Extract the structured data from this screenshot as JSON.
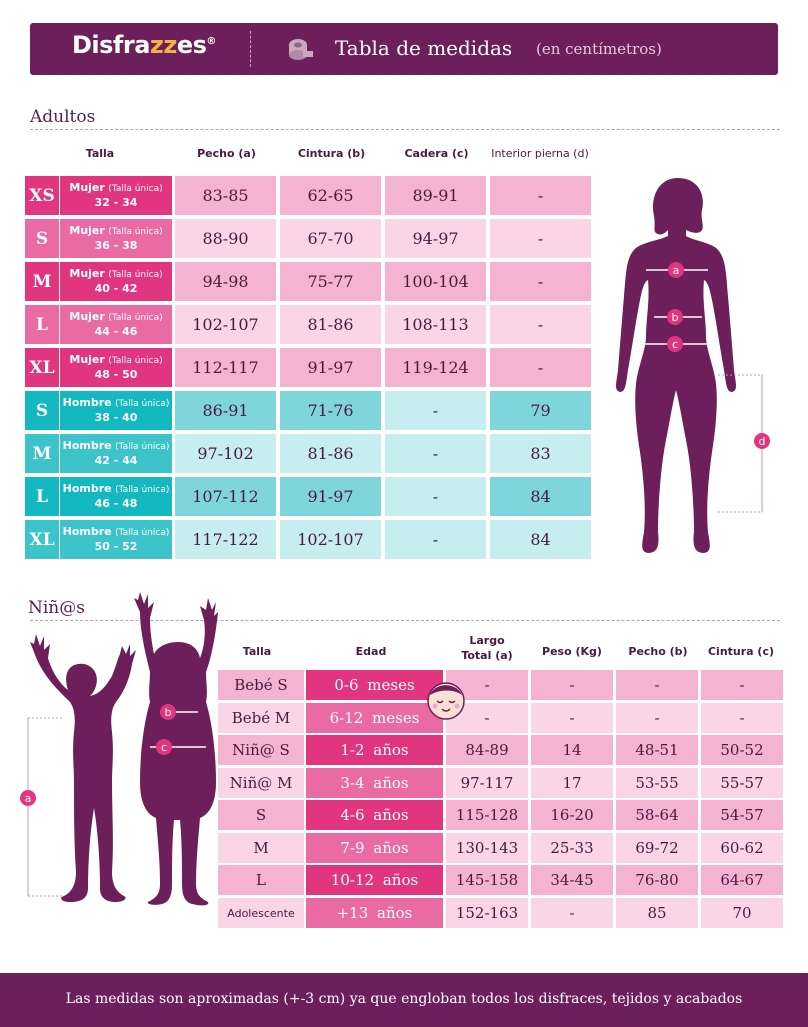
{
  "header": {
    "brand_pre": "Disfra",
    "brand_zz": "zz",
    "brand_post": "es",
    "brand_mark": "®",
    "title": "Tabla de medidas",
    "subtitle": "(en centímetros)",
    "icon": "measuring-tape-icon"
  },
  "adults": {
    "title": "Adultos",
    "headers": {
      "talla": "Talla",
      "pecho": "Pecho (a)",
      "cintura": "Cintura (b)",
      "cadera": "Cadera (c)",
      "pierna": "Interior pierna (d)"
    },
    "rows": [
      {
        "size": "XS",
        "gender": "Mujer",
        "note": "(Talla única)",
        "range": "32 - 34",
        "pecho": "83-85",
        "cintura": "62-65",
        "cadera": "89-91",
        "pierna": "-"
      },
      {
        "size": "S",
        "gender": "Mujer",
        "note": "(Talla única)",
        "range": "36 - 38",
        "pecho": "88-90",
        "cintura": "67-70",
        "cadera": "94-97",
        "pierna": "-"
      },
      {
        "size": "M",
        "gender": "Mujer",
        "note": "(Talla única)",
        "range": "40 - 42",
        "pecho": "94-98",
        "cintura": "75-77",
        "cadera": "100-104",
        "pierna": "-"
      },
      {
        "size": "L",
        "gender": "Mujer",
        "note": "(Talla única)",
        "range": "44 - 46",
        "pecho": "102-107",
        "cintura": "81-86",
        "cadera": "108-113",
        "pierna": "-"
      },
      {
        "size": "XL",
        "gender": "Mujer",
        "note": "(Talla única)",
        "range": "48 - 50",
        "pecho": "112-117",
        "cintura": "91-97",
        "cadera": "119-124",
        "pierna": "-"
      },
      {
        "size": "S",
        "gender": "Hombre",
        "note": "(Talla única)",
        "range": "38 - 40",
        "pecho": "86-91",
        "cintura": "71-76",
        "cadera": "-",
        "pierna": "79"
      },
      {
        "size": "M",
        "gender": "Hombre",
        "note": "(Talla única)",
        "range": "42 - 44",
        "pecho": "97-102",
        "cintura": "81-86",
        "cadera": "-",
        "pierna": "83"
      },
      {
        "size": "L",
        "gender": "Hombre",
        "note": "(Talla única)",
        "range": "46 - 48",
        "pecho": "107-112",
        "cintura": "91-97",
        "cadera": "-",
        "pierna": "84"
      },
      {
        "size": "XL",
        "gender": "Hombre",
        "note": "(Talla única)",
        "range": "50 - 52",
        "pecho": "117-122",
        "cintura": "102-107",
        "cadera": "-",
        "pierna": "84"
      }
    ],
    "figure_labels": {
      "a": "a",
      "b": "b",
      "c": "c",
      "d": "d"
    }
  },
  "kids": {
    "title": "Niñ@s",
    "headers": {
      "talla": "Talla",
      "edad": "Edad",
      "largo_1": "Largo",
      "largo_2": "Total (a)",
      "peso": "Peso (Kg)",
      "pecho": "Pecho (b)",
      "cintura": "Cintura (c)"
    },
    "rows": [
      {
        "talla": "Bebé S",
        "edad": "0-6 meses",
        "largo": "-",
        "peso": "-",
        "pecho": "-",
        "cintura": "-"
      },
      {
        "talla": "Bebé M",
        "edad": "6-12 meses",
        "largo": "-",
        "peso": "-",
        "pecho": "-",
        "cintura": "-"
      },
      {
        "talla": "Niñ@ S",
        "edad": "1-2 años",
        "largo": "84-89",
        "peso": "14",
        "pecho": "48-51",
        "cintura": "50-52"
      },
      {
        "talla": "Niñ@ M",
        "edad": "3-4 años",
        "largo": "97-117",
        "peso": "17",
        "pecho": "53-55",
        "cintura": "55-57"
      },
      {
        "talla": "S",
        "edad": "4-6 años",
        "largo": "115-128",
        "peso": "16-20",
        "pecho": "58-64",
        "cintura": "54-57"
      },
      {
        "talla": "M",
        "edad": "7-9 años",
        "largo": "130-143",
        "peso": "25-33",
        "pecho": "69-72",
        "cintura": "60-62"
      },
      {
        "talla": "L",
        "edad": "10-12 años",
        "largo": "145-158",
        "peso": "34-45",
        "pecho": "76-80",
        "cintura": "64-67"
      },
      {
        "talla": "Adolescente",
        "edad": "+13 años",
        "largo": "152-163",
        "peso": "-",
        "pecho": "85",
        "cintura": "70"
      }
    ],
    "figure_labels": {
      "a": "a",
      "b": "b",
      "c": "c"
    }
  },
  "footer": {
    "text": "Las medidas son aproximadas (+-3 cm) ya que engloban todos los disfraces, tejidos y acabados"
  },
  "colors": {
    "brand_purple": "#6d1f5c",
    "pink_dark": "#e2357f",
    "pink_mid": "#ea6aa4",
    "pink_light": "#f4b3d1",
    "pink_pale": "#f9d5e6",
    "teal_dark": "#13b8c0",
    "teal_light": "#7fd6da",
    "teal_pale": "#c6eef0"
  }
}
